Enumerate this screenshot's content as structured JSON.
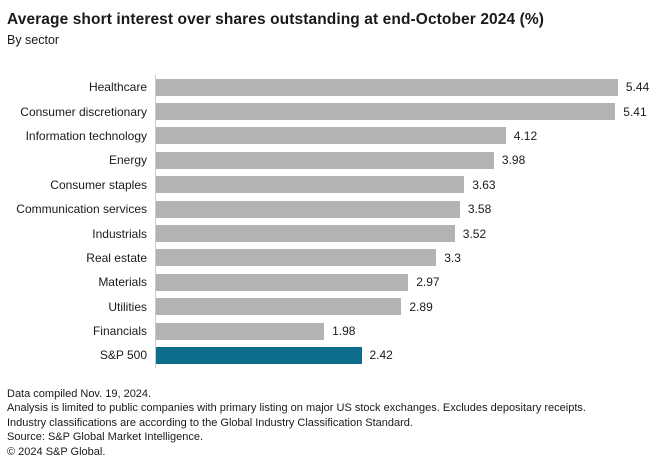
{
  "header": {
    "title": "Average short interest over shares outstanding at end-October 2024 (%)",
    "subtitle": "By sector"
  },
  "chart_data": {
    "type": "bar",
    "orientation": "horizontal",
    "title": "Average short interest over shares outstanding at end-October 2024 (%)",
    "subtitle": "By sector",
    "categories": [
      "Healthcare",
      "Consumer discretionary",
      "Information technology",
      "Energy",
      "Consumer staples",
      "Communication services",
      "Industrials",
      "Real estate",
      "Materials",
      "Utilities",
      "Financials",
      "S&P 500"
    ],
    "values": [
      5.44,
      5.41,
      4.12,
      3.98,
      3.63,
      3.58,
      3.52,
      3.3,
      2.97,
      2.89,
      1.98,
      2.42
    ],
    "value_labels": [
      "5.44",
      "5.41",
      "4.12",
      "3.98",
      "3.63",
      "3.58",
      "3.52",
      "3.3",
      "2.97",
      "2.89",
      "1.98",
      "2.42"
    ],
    "xlim": [
      0,
      5.95
    ],
    "grid": false,
    "data_labels": true,
    "bar_color": "#b3b3b3",
    "highlight_color": "#0f6d8c",
    "highlight_category": "S&P 500",
    "axis_line_color": "#cccccc"
  },
  "footer": {
    "lines": [
      "Data compiled Nov. 19, 2024.",
      "Analysis is limited to public companies with primary listing on major US stock exchanges. Excludes depositary receipts.",
      "Industry classifications are according to the Global Industry Classification Standard.",
      "Source: S&P Global Market Intelligence.",
      "© 2024 S&P Global."
    ]
  }
}
